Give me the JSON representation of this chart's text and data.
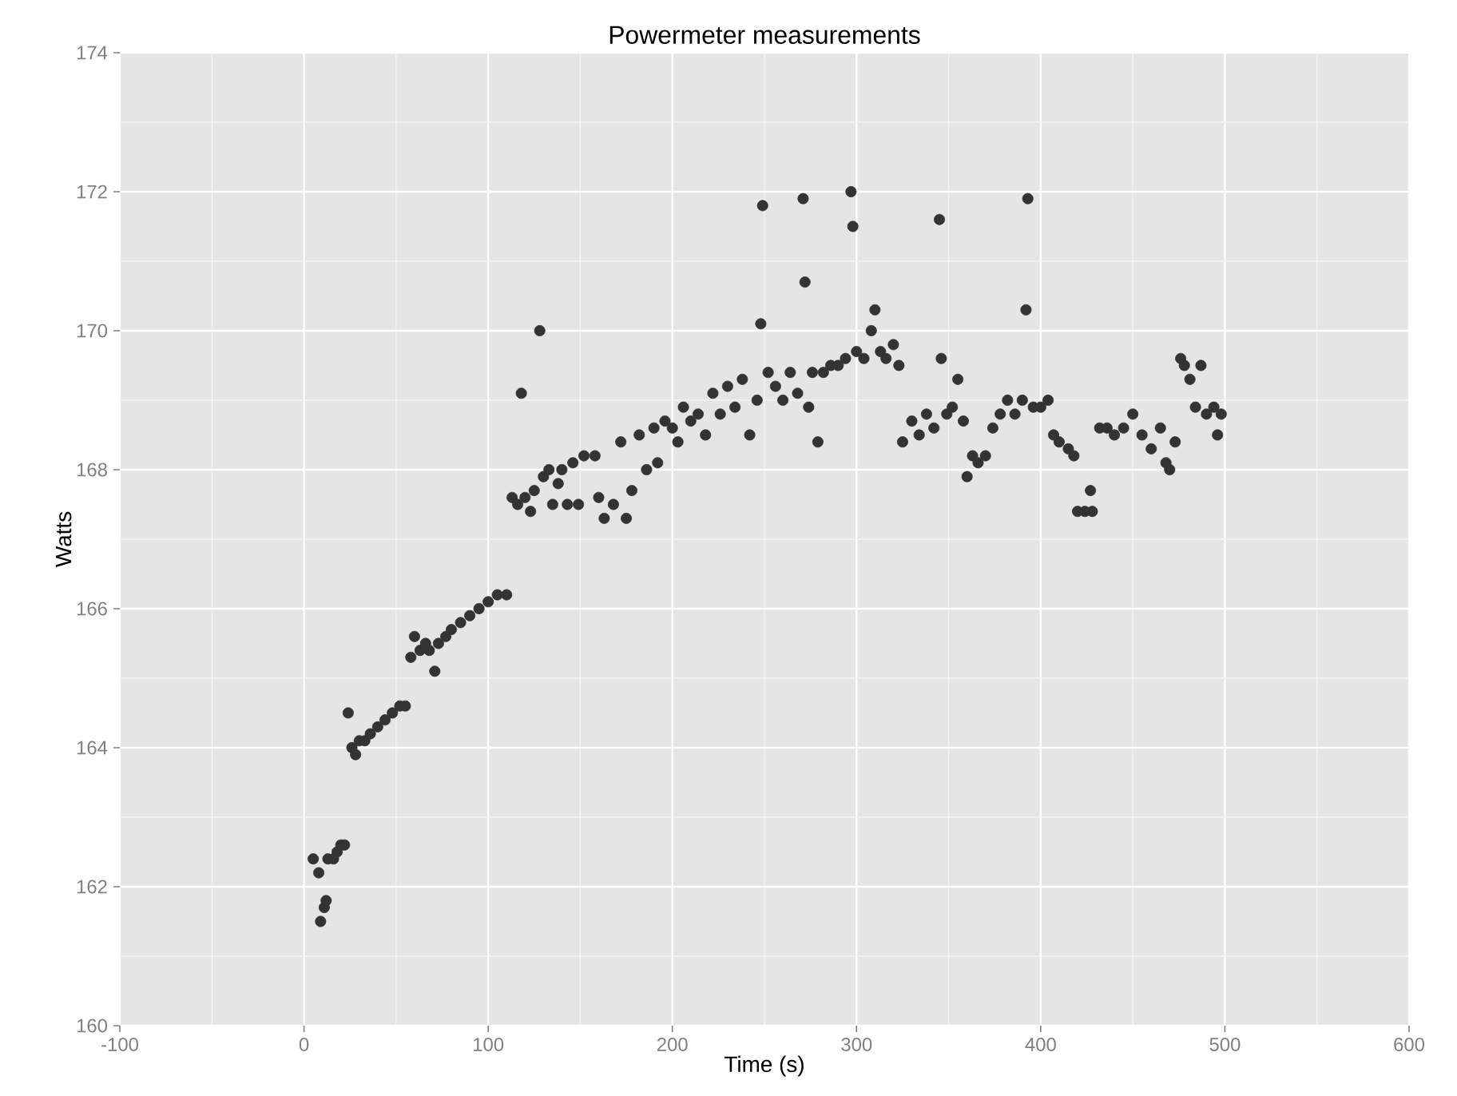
{
  "chart_data": {
    "type": "scatter",
    "title": "Powermeter measurements",
    "xlabel": "Time (s)",
    "ylabel": "Watts",
    "x": [
      5,
      8,
      9,
      11,
      12,
      13,
      16,
      18,
      20,
      22,
      24,
      26,
      28,
      30,
      33,
      36,
      40,
      44,
      48,
      52,
      55,
      58,
      60,
      63,
      66,
      68,
      71,
      73,
      77,
      80,
      85,
      90,
      95,
      100,
      105,
      110,
      113,
      116,
      118,
      120,
      123,
      125,
      128,
      130,
      133,
      135,
      138,
      140,
      143,
      146,
      149,
      152,
      158,
      160,
      163,
      168,
      172,
      175,
      178,
      182,
      186,
      190,
      192,
      196,
      200,
      203,
      206,
      210,
      214,
      218,
      222,
      226,
      230,
      234,
      238,
      242,
      246,
      248,
      249,
      252,
      256,
      260,
      264,
      268,
      271,
      272,
      274,
      276,
      279,
      282,
      286,
      290,
      294,
      297,
      298,
      300,
      304,
      308,
      310,
      313,
      316,
      320,
      323,
      325,
      330,
      334,
      338,
      342,
      345,
      346,
      349,
      352,
      355,
      358,
      360,
      363,
      366,
      370,
      374,
      378,
      382,
      386,
      390,
      392,
      393,
      396,
      400,
      404,
      407,
      410,
      415,
      418,
      420,
      424,
      427,
      428,
      432,
      436,
      440,
      445,
      450,
      455,
      460,
      465,
      468,
      470,
      473,
      476,
      478,
      481,
      484,
      487,
      490,
      494,
      496,
      498
    ],
    "values": [
      162.4,
      162.2,
      161.5,
      161.7,
      161.8,
      162.4,
      162.4,
      162.5,
      162.6,
      162.6,
      164.5,
      164.0,
      163.9,
      164.1,
      164.1,
      164.2,
      164.3,
      164.4,
      164.5,
      164.6,
      164.6,
      165.3,
      165.6,
      165.4,
      165.5,
      165.4,
      165.1,
      165.5,
      165.6,
      165.7,
      165.8,
      165.9,
      166.0,
      166.1,
      166.2,
      166.2,
      167.6,
      167.5,
      169.1,
      167.6,
      167.4,
      167.7,
      170.0,
      167.9,
      168.0,
      167.5,
      167.8,
      168.0,
      167.5,
      168.1,
      167.5,
      168.2,
      168.2,
      167.6,
      167.3,
      167.5,
      168.4,
      167.3,
      167.7,
      168.5,
      168.0,
      168.6,
      168.1,
      168.7,
      168.6,
      168.4,
      168.9,
      168.7,
      168.8,
      168.5,
      169.1,
      168.8,
      169.2,
      168.9,
      169.3,
      168.5,
      169.0,
      170.1,
      171.8,
      169.4,
      169.2,
      169.0,
      169.4,
      169.1,
      171.9,
      170.7,
      168.9,
      169.4,
      168.4,
      169.4,
      169.5,
      169.5,
      169.6,
      172.0,
      171.5,
      169.7,
      169.6,
      170.0,
      170.3,
      169.7,
      169.6,
      169.8,
      169.5,
      168.4,
      168.7,
      168.5,
      168.8,
      168.6,
      171.6,
      169.6,
      168.8,
      168.9,
      169.3,
      168.7,
      167.9,
      168.2,
      168.1,
      168.2,
      168.6,
      168.8,
      169.0,
      168.8,
      169.0,
      170.3,
      171.9,
      168.9,
      168.9,
      169.0,
      168.5,
      168.4,
      168.3,
      168.2,
      167.4,
      167.4,
      167.7,
      167.4,
      168.6,
      168.6,
      168.5,
      168.6,
      168.8,
      168.5,
      168.3,
      168.6,
      168.1,
      168.0,
      168.4,
      169.6,
      169.5,
      169.3,
      168.9,
      169.5,
      168.8,
      168.9,
      168.5,
      168.8
    ],
    "color": "#333333",
    "xlim": [
      -100,
      600
    ],
    "xticks": [
      -100,
      0,
      100,
      200,
      300,
      400,
      500,
      600
    ],
    "ylim": [
      160,
      174
    ],
    "yticks": [
      160,
      162,
      164,
      166,
      168,
      170,
      172,
      174
    ],
    "grid": true
  }
}
